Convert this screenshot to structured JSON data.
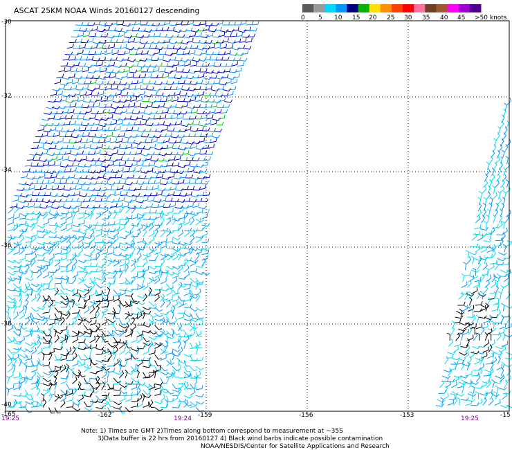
{
  "title": "ASCAT 25KM NOAA Winds 20160127 descending",
  "legend": {
    "labels": [
      "0",
      "5",
      "10",
      "15",
      "20",
      "25",
      "30",
      "35",
      "40",
      "45",
      ">50 knots"
    ],
    "colors": [
      "#5a5a5a",
      "#9a9a9a",
      "#00d8ff",
      "#0096ff",
      "#000080",
      "#00b400",
      "#ffe000",
      "#ff9000",
      "#ff4000",
      "#ff0000",
      "#ff70a0",
      "#704020",
      "#a05830",
      "#ff00ff",
      "#a000d0",
      "#50008c"
    ]
  },
  "lat_labels": [
    "-30",
    "-32",
    "-34",
    "-36",
    "-38",
    "-40"
  ],
  "lon_labels": [
    "-165",
    "-162",
    "-159",
    "-156",
    "-153",
    "-15"
  ],
  "time_labels": [
    "19:25",
    "19:24",
    "19:25"
  ],
  "notes": [
    "Note: 1) Times are GMT 2)Times along bottom correspond to measurement at ~35S",
    "3)Data buffer is 22 hrs from 20160127 4) Black wind barbs indicate possible contamination",
    "NOAA/NESDIS/Center for Satellite Applications and Research"
  ],
  "barb_colors": {
    "calm": "#000000",
    "light": "#00d8f0",
    "medium": "#0096ff",
    "fresh": "#0000c8",
    "strong": "#00c800"
  }
}
